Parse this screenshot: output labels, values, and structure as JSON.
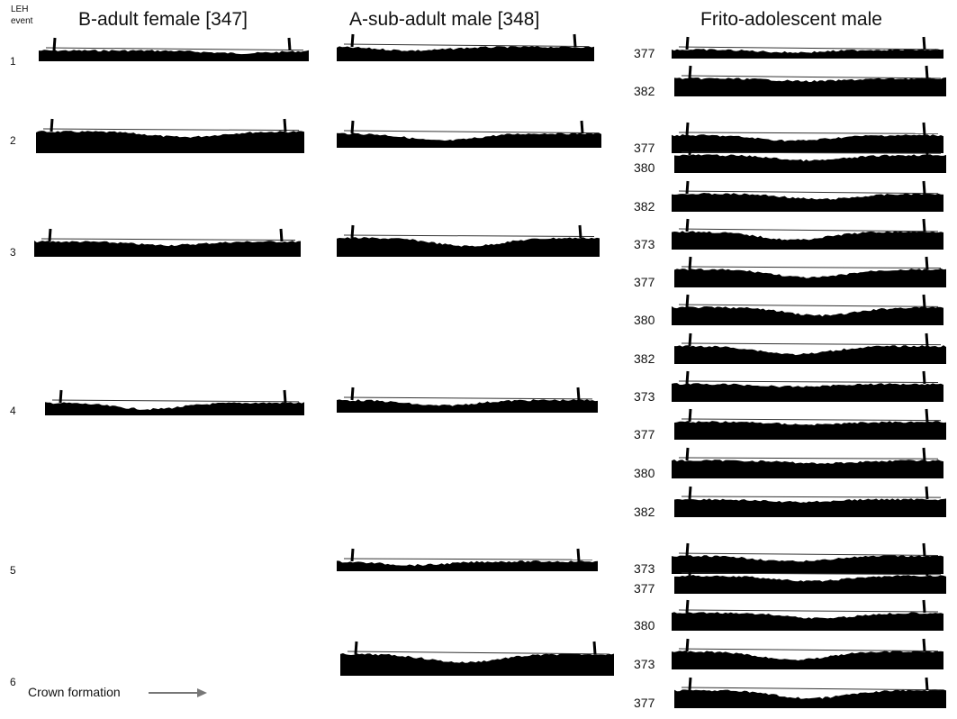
{
  "leh_label": {
    "line1": "LEH",
    "line2": "event"
  },
  "columns": [
    {
      "title": "B-adult female [347]"
    },
    {
      "title": "A-sub-adult male [348]"
    },
    {
      "title": "Frito-adolescent male"
    }
  ],
  "events": [
    "1",
    "2",
    "3",
    "4",
    "5",
    "6"
  ],
  "frito_labels": [
    [
      "377",
      "382"
    ],
    [
      "377",
      "380",
      "382"
    ],
    [
      "373",
      "377",
      "380",
      "382"
    ],
    [
      "373",
      "377",
      "380",
      "382"
    ],
    [
      "373",
      "377",
      "380"
    ],
    [
      "373",
      "377"
    ]
  ],
  "footer": {
    "label": "Crown formation"
  }
}
